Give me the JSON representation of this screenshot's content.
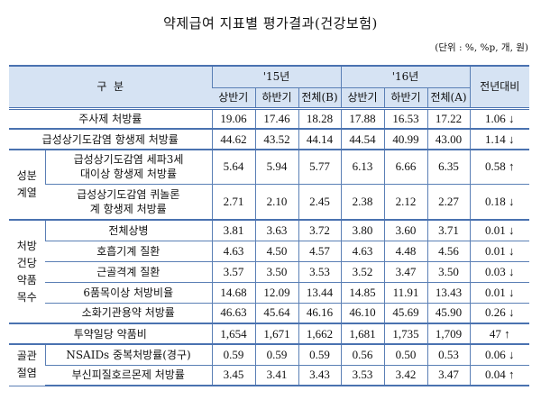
{
  "title": "약제급여 지표별 평가결과(건강보험)",
  "unit": "(단위 : %, %p, 개, 원)",
  "header": {
    "category": "구  분",
    "year1": "'15년",
    "year2": "'16년",
    "change": "전년대비",
    "sub": [
      "상반기",
      "하반기",
      "전체(B)",
      "상반기",
      "하반기",
      "전체(A)"
    ]
  },
  "groups": {
    "ingredient": "성분\n계열",
    "per_prescription": "처방\n건당\n약품\n목수",
    "osteoarthritis": "골관\n절염"
  },
  "rows": [
    {
      "label": "주사제 처방률",
      "values": [
        "19.06",
        "17.46",
        "18.28",
        "17.88",
        "16.53",
        "17.22"
      ],
      "change": "1.06",
      "dir": "↓"
    },
    {
      "label": "급성상기도감염 항생제 처방률",
      "values": [
        "44.62",
        "43.52",
        "44.14",
        "44.54",
        "40.99",
        "43.00"
      ],
      "change": "1.14",
      "dir": "↓"
    },
    {
      "label": "급성상기도감염 세파3세대이상 항생제 처방률",
      "values": [
        "5.64",
        "5.94",
        "5.77",
        "6.13",
        "6.66",
        "6.35"
      ],
      "change": "0.58",
      "dir": "↑"
    },
    {
      "label": "급성상기도감염 퀴놀론계 항생제 처방률",
      "values": [
        "2.71",
        "2.10",
        "2.45",
        "2.38",
        "2.12",
        "2.27"
      ],
      "change": "0.18",
      "dir": "↓"
    },
    {
      "label": "전체상병",
      "values": [
        "3.81",
        "3.63",
        "3.72",
        "3.80",
        "3.60",
        "3.71"
      ],
      "change": "0.01",
      "dir": "↓"
    },
    {
      "label": "호흡기계 질환",
      "values": [
        "4.63",
        "4.50",
        "4.57",
        "4.63",
        "4.48",
        "4.56"
      ],
      "change": "0.01",
      "dir": "↓"
    },
    {
      "label": "근골격계 질환",
      "values": [
        "3.57",
        "3.50",
        "3.53",
        "3.52",
        "3.47",
        "3.50"
      ],
      "change": "0.03",
      "dir": "↓"
    },
    {
      "label": "6품목이상 처방비율",
      "values": [
        "14.68",
        "12.09",
        "13.44",
        "14.85",
        "11.91",
        "13.43"
      ],
      "change": "0.01",
      "dir": "↓"
    },
    {
      "label": "소화기관용약 처방률",
      "values": [
        "46.63",
        "45.64",
        "46.16",
        "46.10",
        "45.69",
        "45.90"
      ],
      "change": "0.26",
      "dir": "↓"
    },
    {
      "label": "투약일당 약품비",
      "values": [
        "1,654",
        "1,671",
        "1,662",
        "1,681",
        "1,735",
        "1,709"
      ],
      "change": "47",
      "dir": "↑"
    },
    {
      "label": "NSAIDs 중복처방률(경구)",
      "values": [
        "0.59",
        "0.59",
        "0.59",
        "0.56",
        "0.50",
        "0.53"
      ],
      "change": "0.06",
      "dir": "↓"
    },
    {
      "label": "부신피질호르몬제 처방률",
      "values": [
        "3.45",
        "3.41",
        "3.43",
        "3.53",
        "3.42",
        "3.47"
      ],
      "change": "0.04",
      "dir": "↑"
    }
  ],
  "colors": {
    "header_bg": "#d6e3f3",
    "border": "#4a72b0"
  }
}
